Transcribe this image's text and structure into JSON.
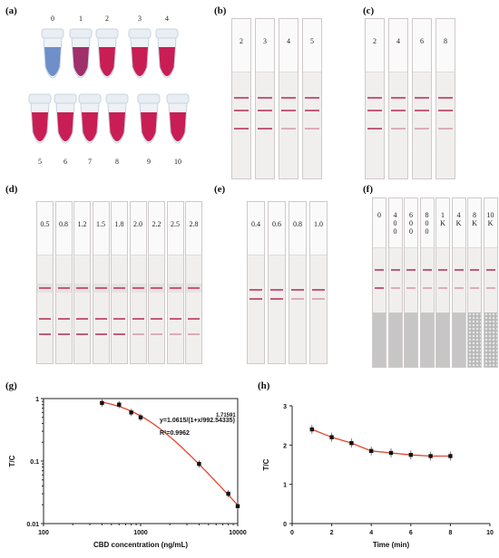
{
  "panels": {
    "a": {
      "label": "(a)",
      "tubes": [
        "0",
        "1",
        "2",
        "3",
        "4",
        "5",
        "6",
        "7",
        "8",
        "9",
        "10"
      ]
    },
    "b": {
      "label": "(b)",
      "strips": [
        "2",
        "3",
        "4",
        "5"
      ]
    },
    "c": {
      "label": "(c)",
      "strips": [
        "2",
        "4",
        "6",
        "8"
      ]
    },
    "d": {
      "label": "(d)",
      "strips": [
        "0.5",
        "0.8",
        "1.2",
        "1.5",
        "1.8",
        "2.0",
        "2.2",
        "2.5",
        "2.8"
      ]
    },
    "e": {
      "label": "(e)",
      "strips": [
        "0.4",
        "0.6",
        "0.8",
        "1.0"
      ]
    },
    "f": {
      "label": "(f)",
      "strips": [
        [
          "0"
        ],
        [
          "4",
          "0",
          "0"
        ],
        [
          "6",
          "0",
          "0"
        ],
        [
          "8",
          "0",
          "0"
        ],
        [
          "1",
          "K"
        ],
        [
          "4",
          "K"
        ],
        [
          "8",
          "K"
        ],
        [
          "10",
          "K"
        ]
      ]
    },
    "g": {
      "label": "(g)"
    },
    "h": {
      "label": "(h)"
    }
  },
  "chart_data": [
    {
      "type": "scatter",
      "panel": "g",
      "xscale": "log",
      "yscale": "log",
      "xlabel": "CBD concentration (ng/mL)",
      "ylabel": "T/C",
      "xlim": [
        100,
        10000
      ],
      "ylim": [
        0.01,
        1
      ],
      "xticks": [
        "100",
        "1000",
        "10000"
      ],
      "yticks": [
        "0.01",
        "0.1",
        "1"
      ],
      "equation": "y=1.0615/(1+x/992.54335)",
      "exponent": "1.71591",
      "r2": "R²=0.9962",
      "x": [
        400,
        600,
        800,
        1000,
        4000,
        8000,
        10000
      ],
      "y": [
        0.85,
        0.8,
        0.6,
        0.5,
        0.09,
        0.03,
        0.019
      ],
      "fit": {
        "a": 1.0615,
        "c": 992.54335,
        "b": 1.71591
      }
    },
    {
      "type": "line",
      "panel": "h",
      "xlabel": "Time (min)",
      "ylabel": "T/C",
      "xlim": [
        0,
        10
      ],
      "ylim": [
        0,
        3
      ],
      "xticks": [
        "0",
        "2",
        "4",
        "6",
        "8",
        "10"
      ],
      "yticks": [
        "0",
        "1",
        "2",
        "3"
      ],
      "x": [
        1,
        2,
        3,
        4,
        5,
        6,
        7,
        8
      ],
      "y": [
        2.4,
        2.2,
        2.05,
        1.85,
        1.8,
        1.75,
        1.72,
        1.72
      ]
    }
  ],
  "colors": {
    "pink_line": "#c45a7a",
    "fit_curve": "#e0452a",
    "tube_blue": "#6f8fc9",
    "tube_red": "#c81e55"
  }
}
